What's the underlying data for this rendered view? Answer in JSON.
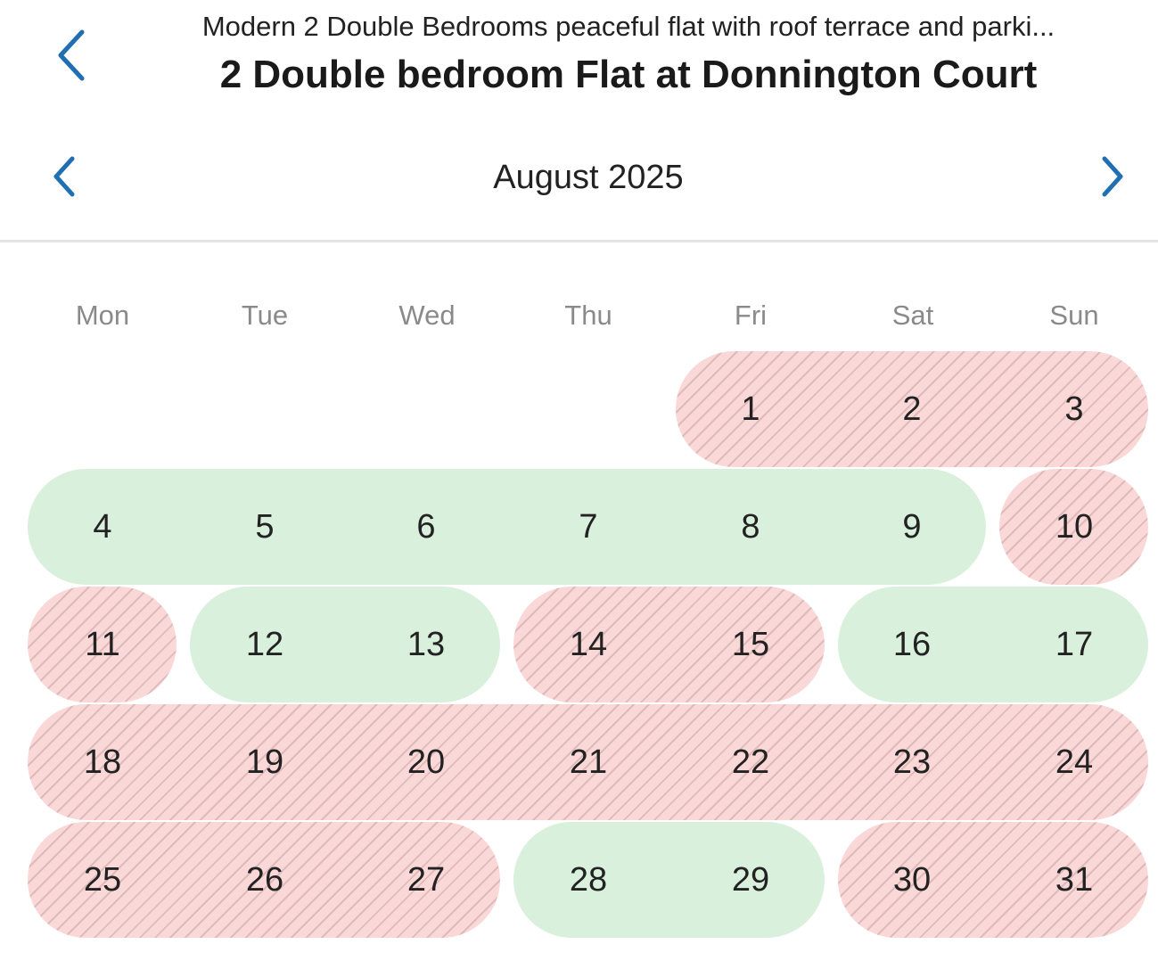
{
  "header": {
    "subtitle": "Modern 2 Double Bedrooms peaceful flat with roof terrace and parki...",
    "title": "2 Double bedroom Flat at Donnington Court",
    "back_icon": "chevron-left-icon"
  },
  "calendar": {
    "month_label": "August 2025",
    "prev_icon": "chevron-left-icon",
    "next_icon": "chevron-right-icon",
    "weekdays": [
      "Mon",
      "Tue",
      "Wed",
      "Thu",
      "Fri",
      "Sat",
      "Sun"
    ],
    "days": [
      "1",
      "2",
      "3",
      "4",
      "5",
      "6",
      "7",
      "8",
      "9",
      "10",
      "11",
      "12",
      "13",
      "14",
      "15",
      "16",
      "17",
      "18",
      "19",
      "20",
      "21",
      "22",
      "23",
      "24",
      "25",
      "26",
      "27",
      "28",
      "29",
      "30",
      "31"
    ],
    "colors": {
      "accent": "#1f6fb2",
      "booked": "#fbd8d8",
      "available": "#d9f0dd"
    },
    "ranges": [
      {
        "status": "booked",
        "from": "1",
        "to": "3"
      },
      {
        "status": "available",
        "from": "4",
        "to": "9"
      },
      {
        "status": "booked",
        "from": "10",
        "to": "10"
      },
      {
        "status": "booked",
        "from": "11",
        "to": "11"
      },
      {
        "status": "available",
        "from": "12",
        "to": "13"
      },
      {
        "status": "booked",
        "from": "14",
        "to": "15"
      },
      {
        "status": "available",
        "from": "16",
        "to": "17"
      },
      {
        "status": "booked",
        "from": "18",
        "to": "24"
      },
      {
        "status": "booked",
        "from": "25",
        "to": "27"
      },
      {
        "status": "available",
        "from": "28",
        "to": "29"
      },
      {
        "status": "booked",
        "from": "30",
        "to": "31"
      }
    ]
  }
}
